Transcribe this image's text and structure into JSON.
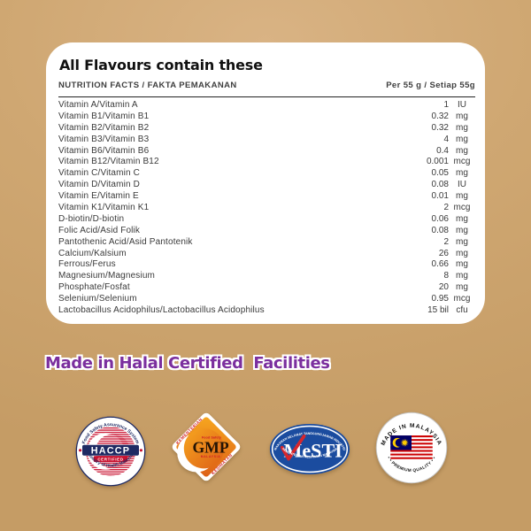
{
  "card": {
    "title": "All Flavours contain these",
    "facts_label": "NUTRITION FACTS / FAKTA PEMAKANAN",
    "serving_label": "Per 55 g / Setiap 55g",
    "rows": [
      {
        "label": "Vitamin A/Vitamin A",
        "value": "1",
        "unit": "IU"
      },
      {
        "label": "Vitamin B1/Vitamin B1",
        "value": "0.32",
        "unit": "mg"
      },
      {
        "label": "Vitamin B2/Vitamin B2",
        "value": "0.32",
        "unit": "mg"
      },
      {
        "label": "Vitamin B3/Vitamin B3",
        "value": "4",
        "unit": "mg"
      },
      {
        "label": "Vitamin B6/Vitamin B6",
        "value": "0.4",
        "unit": "mg"
      },
      {
        "label": "Vitamin B12/Vitamin B12",
        "value": "0.001",
        "unit": "mcg"
      },
      {
        "label": "Vitamin C/Vitamin C",
        "value": "0.05",
        "unit": "mg"
      },
      {
        "label": "Vitamin D/Vitamin D",
        "value": "0.08",
        "unit": "IU"
      },
      {
        "label": "Vitamin E/Vitamin E",
        "value": "0.01",
        "unit": "mg"
      },
      {
        "label": "Vitamin K1/Vitamin K1",
        "value": "2",
        "unit": "mcg"
      },
      {
        "label": "D-biotin/D-biotin",
        "value": "0.06",
        "unit": "mg"
      },
      {
        "label": "Folic Acid/Asid Folik",
        "value": "0.08",
        "unit": "mg"
      },
      {
        "label": "Pantothenic Acid/Asid Pantotenik",
        "value": "2",
        "unit": "mg"
      },
      {
        "label": "Calcium/Kalsium",
        "value": "26",
        "unit": "mg"
      },
      {
        "label": "Ferrous/Ferus",
        "value": "0.66",
        "unit": "mg"
      },
      {
        "label": "Magnesium/Magnesium",
        "value": "8",
        "unit": "mg"
      },
      {
        "label": "Phosphate/Fosfat",
        "value": "20",
        "unit": "mg"
      },
      {
        "label": "Selenium/Selenium",
        "value": "0.95",
        "unit": "mcg"
      },
      {
        "label": "Lactobacillus Acidophilus/Lactobacillus Acidophilus",
        "value": "15 bil",
        "unit": "cfu"
      }
    ]
  },
  "halal_line": "Made in Halal Certified  Facilities",
  "badges": {
    "haccp": {
      "top_arc": "Food Safety Assurance System",
      "center": "HACCP",
      "sub": "CERTIFIED",
      "bottom_arc": "Ministry of Health Malaysia"
    },
    "gmp": {
      "edge_top": "KEMENTERIAN",
      "small_top": "Food Safety",
      "center": "GMP",
      "small_bottom": "MALAYSIA",
      "edge_bottom": "KESIHATAN"
    },
    "mesti": {
      "top_arc": "MAKANAN SELAMAT TANGGUNGJAWAB INDUSTRI",
      "center": "MeSTI",
      "bottom_arc": "KEMENTERIAN KESIHATAN MALAYSIA"
    },
    "malaysia": {
      "top_arc": "MADE IN MALAYSIA",
      "bottom_arc": "• • PREMIUM QUALITY • •"
    }
  },
  "colors": {
    "background_tan": "#cda46f",
    "purple_accent": "#7b2f9e",
    "haccp_navy": "#1e2a63",
    "haccp_red": "#c8102e",
    "gmp_orange": "#ef7c23",
    "mesti_blue": "#1b4c9f",
    "flag_red": "#cc0001",
    "flag_blue": "#010066",
    "flag_yellow": "#ffcc00"
  }
}
